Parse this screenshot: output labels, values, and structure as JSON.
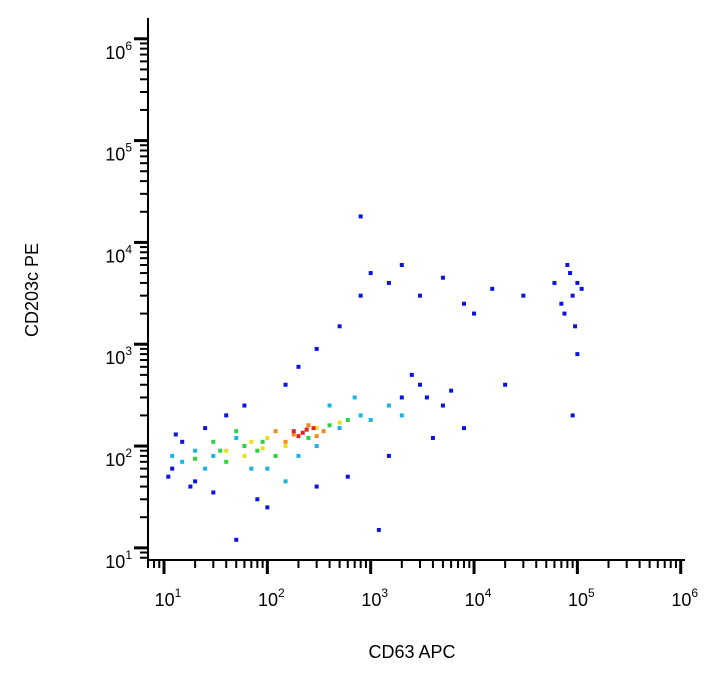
{
  "chart_data": {
    "type": "scatter",
    "x_label": "CD63 APC",
    "y_label": "CD203c PE",
    "xscale": "log",
    "yscale": "log",
    "minor_ticks": true,
    "xlim": [
      7,
      1100000
    ],
    "ylim": [
      7.6,
      1600000
    ],
    "xticks": [
      {
        "value": 10,
        "label": "10",
        "sup": "1"
      },
      {
        "value": 100,
        "label": "10",
        "sup": "2"
      },
      {
        "value": 1000,
        "label": "10",
        "sup": "3"
      },
      {
        "value": 10000,
        "label": "10",
        "sup": "4"
      },
      {
        "value": 100000,
        "label": "10",
        "sup": "5"
      },
      {
        "value": 1000000,
        "label": "10",
        "sup": "6"
      }
    ],
    "yticks": [
      {
        "value": 10,
        "label": "10",
        "sup": "1"
      },
      {
        "value": 100,
        "label": "10",
        "sup": "2"
      },
      {
        "value": 1000,
        "label": "10",
        "sup": "3"
      },
      {
        "value": 10000,
        "label": "10",
        "sup": "4"
      },
      {
        "value": 100000,
        "label": "10",
        "sup": "5"
      },
      {
        "value": 1000000,
        "label": "10",
        "sup": "6"
      }
    ],
    "series": [
      {
        "color": "#0a14e0",
        "x": [
          12,
          15,
          20,
          25,
          30,
          40,
          60,
          80,
          100,
          150,
          200,
          300,
          500,
          800,
          1000,
          1500,
          2000,
          3000,
          5000,
          8000,
          10000,
          15000,
          30000,
          60000,
          70000,
          80000,
          90000,
          100000,
          85000,
          75000,
          95000,
          110000,
          800,
          2000,
          3000,
          5000,
          8000,
          4000,
          1500,
          600,
          300,
          1200,
          50,
          3500,
          6000,
          2500,
          20000,
          90000,
          100000,
          11,
          13,
          18
        ],
        "y": [
          60,
          110,
          45,
          150,
          35,
          200,
          250,
          30,
          25,
          400,
          600,
          900,
          1500,
          3000,
          5000,
          4000,
          6000,
          3000,
          4500,
          2500,
          2000,
          3500,
          3000,
          4000,
          2500,
          6000,
          3000,
          4000,
          5000,
          2000,
          1500,
          3500,
          18000,
          300,
          400,
          250,
          150,
          120,
          80,
          50,
          40,
          15,
          12,
          300,
          350,
          500,
          400,
          200,
          800,
          50,
          130,
          40
        ]
      },
      {
        "color": "#19b4e6",
        "x": [
          15,
          20,
          30,
          50,
          70,
          100,
          200,
          300,
          500,
          800,
          1000,
          1500,
          2000,
          700,
          400,
          150,
          12,
          25
        ],
        "y": [
          70,
          90,
          80,
          120,
          60,
          60,
          80,
          100,
          150,
          200,
          180,
          250,
          200,
          300,
          250,
          45,
          80,
          60
        ]
      },
      {
        "color": "#2ed13f",
        "x": [
          20,
          30,
          40,
          60,
          80,
          120,
          250,
          400,
          600,
          50,
          35,
          90
        ],
        "y": [
          75,
          110,
          70,
          100,
          90,
          80,
          120,
          160,
          180,
          140,
          90,
          110
        ]
      },
      {
        "color": "#e8e01a",
        "x": [
          40,
          60,
          70,
          100,
          150,
          300,
          500,
          90
        ],
        "y": [
          90,
          80,
          110,
          120,
          100,
          150,
          170,
          95
        ]
      },
      {
        "color": "#f08a16",
        "x": [
          120,
          180,
          250,
          350,
          150,
          300
        ],
        "y": [
          140,
          130,
          160,
          140,
          110,
          125
        ]
      },
      {
        "color": "#e3241b",
        "x": [
          180,
          220,
          280,
          200,
          240
        ],
        "y": [
          140,
          135,
          150,
          125,
          145
        ]
      }
    ]
  }
}
